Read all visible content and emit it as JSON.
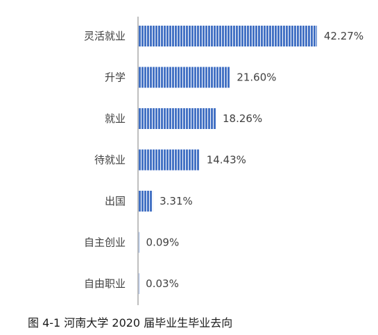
{
  "caption": "图 4-1  河南大学 2020 届毕业生毕业去向",
  "colors": {
    "bar": "#4472C4",
    "bar_stripe": "#ffffff",
    "axis": "#bfbfbf",
    "text": "#404040"
  },
  "chart_data": {
    "type": "bar",
    "orientation": "horizontal",
    "categories": [
      "灵活就业",
      "升学",
      "就业",
      "待就业",
      "出国",
      "自主创业",
      "自由职业"
    ],
    "values": [
      42.27,
      21.6,
      18.26,
      14.43,
      3.31,
      0.09,
      0.03
    ],
    "labels": [
      "42.27%",
      "21.60%",
      "18.26%",
      "14.43%",
      "3.31%",
      "0.09%",
      "0.03%"
    ],
    "unit": "%",
    "title": "",
    "xlabel": "",
    "ylabel": "",
    "xlim": [
      0,
      42.27
    ],
    "grid": false,
    "legend": "none",
    "bar_fill": "vertical-stripes"
  }
}
